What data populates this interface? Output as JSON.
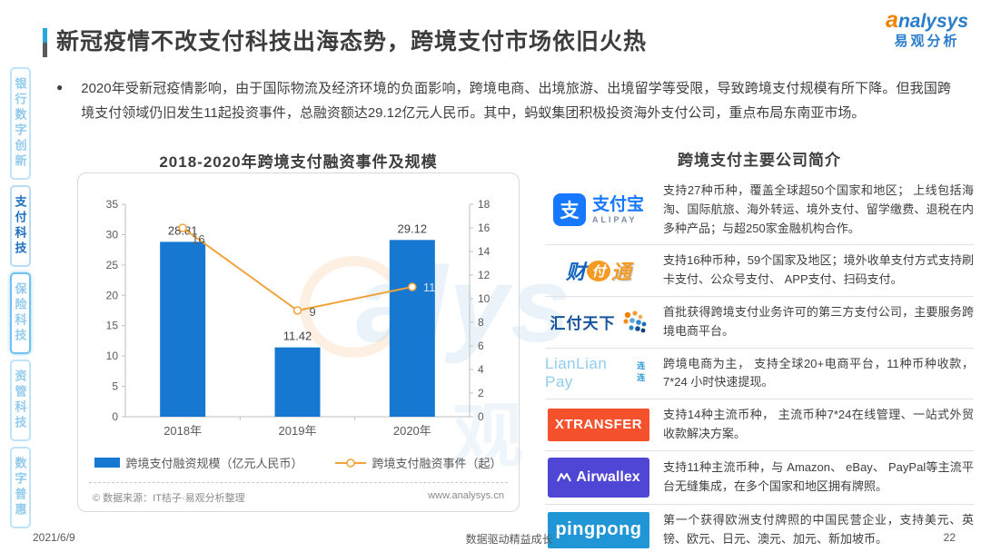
{
  "header": {
    "title": "新冠疫情不改支付科技出海态势，跨境支付市场依旧火热",
    "brand_en_a": "a",
    "brand_en_rest": "nalysys",
    "brand_cn": "易观分析"
  },
  "sidebar": {
    "items": [
      {
        "label": "银行数字创新",
        "active": false
      },
      {
        "label": "支付科技",
        "active": true
      },
      {
        "label": "保险科技",
        "active": false
      },
      {
        "label": "资管科技",
        "active": false
      },
      {
        "label": "数字普惠",
        "active": false
      }
    ]
  },
  "intro": {
    "bullet": "●",
    "text": "2020年受新冠疫情影响，由于国际物流及经济环境的负面影响，跨境电商、出境旅游、出境留学等受限，导致跨境支付规模有所下降。但我国跨境支付领域仍旧发生11起投资事件，总融资额达29.12亿元人民币。其中，蚂蚁集团积极投资海外支付公司，重点布局东南亚市场。"
  },
  "chart_data": {
    "type": "bar",
    "title": "2018-2020年跨境支付融资事件及规模",
    "categories": [
      "2018年",
      "2019年",
      "2020年"
    ],
    "series": [
      {
        "name": "跨境支付融资规模（亿元人民币）",
        "kind": "bar",
        "axis": "left",
        "values": [
          28.81,
          11.42,
          29.12
        ],
        "color": "#1778d2"
      },
      {
        "name": "跨境支付融资事件（起）",
        "kind": "line",
        "axis": "right",
        "values": [
          16,
          9,
          11
        ],
        "color": "#f2a33a"
      }
    ],
    "left_axis": {
      "min": 0,
      "max": 35,
      "step": 5
    },
    "right_axis": {
      "min": 0,
      "max": 18,
      "step": 2
    },
    "grid": false,
    "legend_position": "bottom"
  },
  "chart_card": {
    "source": "© 数据来源：IT桔子·易观分析整理",
    "site": "www.analysys.cn"
  },
  "companies": {
    "title": "跨境支付主要公司简介",
    "rows": [
      {
        "id": "alipay",
        "logo": {
          "mark": "支",
          "cn": "支付宝",
          "en": "ALIPAY"
        },
        "desc": "支持27种币种，覆盖全球超50个国家和地区； 上线包括海淘、国际航旅、海外转运、境外支付、留学缴费、退税在内多种产品；与超250家金融机构合作。"
      },
      {
        "id": "tenpay",
        "logo": {
          "part1": "财",
          "part2": "付",
          "part3": "通"
        },
        "desc": "支持16种币种，59个国家及地区；境外收单支付方式支持刷卡支付、公众号支付、 APP支付、扫码支付。"
      },
      {
        "id": "huifu",
        "logo": {
          "cn": "汇付天下"
        },
        "desc": "首批获得跨境支付业务许可的第三方支付公司，主要服务跨境电商平台。"
      },
      {
        "id": "lianlian",
        "logo": {
          "en": "LianLian Pay",
          "cn": "连连"
        },
        "desc": "跨境电商为主， 支持全球20+电商平台，11种币种收款，7*24 小时快速提现。"
      },
      {
        "id": "xtransfer",
        "logo": {
          "en": "XTRANSFER"
        },
        "desc": "支持14种主流币种， 主流币种7*24在线管理、一站式外贸收款解决方案。"
      },
      {
        "id": "airwallex",
        "logo": {
          "en": "Airwallex"
        },
        "desc": "支持11种主流币种，与 Amazon、 eBay、 PayPal等主流平台无缝集成，在多个国家和地区拥有牌照。"
      },
      {
        "id": "pingpong",
        "logo": {
          "en": "pingpong"
        },
        "desc": "第一个获得欧洲支付牌照的中国民营企业，支持美元、英镑、欧元、日元、澳元、加元、新加坡币。"
      }
    ]
  },
  "footer": {
    "date": "2021/6/9",
    "center": "数据驱动精益成长",
    "page": "22"
  },
  "colors": {
    "bar": "#1778d2",
    "line": "#f2a33a",
    "accent": "#2e75b6"
  }
}
